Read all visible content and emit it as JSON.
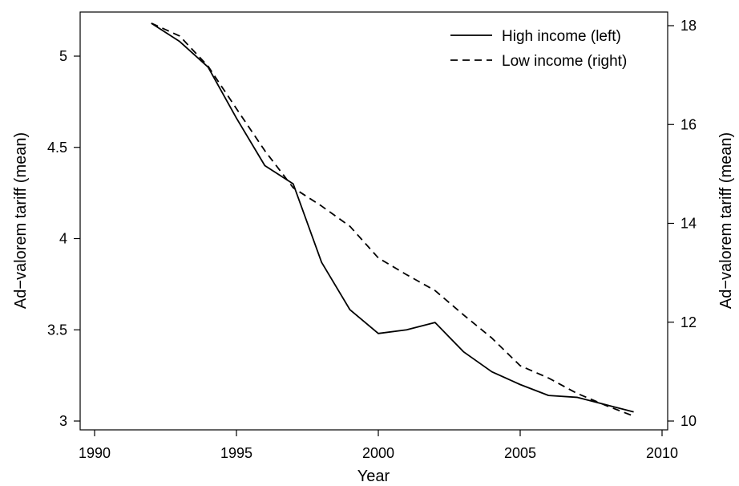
{
  "chart_data": {
    "type": "line",
    "x": [
      1992,
      1993,
      1994,
      1995,
      1996,
      1997,
      1998,
      1999,
      2000,
      2001,
      2002,
      2003,
      2004,
      2005,
      2006,
      2007,
      2008,
      2009
    ],
    "xlabel": "Year",
    "xlim": [
      1990,
      2010
    ],
    "xticks": [
      1990,
      1995,
      2000,
      2005,
      2010
    ],
    "y_left": {
      "label": "Ad−valorem tariff (mean)",
      "lim": [
        3,
        5.2
      ],
      "ticks": [
        "3",
        "3.5",
        "4",
        "4.5",
        "5"
      ],
      "tick_values": [
        3,
        3.5,
        4,
        4.5,
        5
      ]
    },
    "y_right": {
      "label": "Ad−valorem tariff (mean)",
      "lim": [
        10,
        18
      ],
      "ticks": [
        "10",
        "12",
        "14",
        "16",
        "18"
      ],
      "tick_values": [
        10,
        12,
        14,
        16,
        18
      ]
    },
    "series": [
      {
        "name": "High income (left)",
        "axis": "left",
        "style": "solid",
        "values": [
          5.18,
          5.08,
          4.94,
          4.66,
          4.4,
          4.3,
          3.87,
          3.61,
          3.48,
          3.5,
          3.54,
          3.38,
          3.27,
          3.2,
          3.14,
          3.13,
          3.09,
          3.05
        ]
      },
      {
        "name": "Low income (right)",
        "axis": "right",
        "style": "dashed",
        "values": [
          18.05,
          17.79,
          17.18,
          16.32,
          15.47,
          14.72,
          14.35,
          13.94,
          13.3,
          12.96,
          12.64,
          12.15,
          11.68,
          11.12,
          10.87,
          10.56,
          10.32,
          10.1
        ]
      }
    ],
    "legend_position": "top-right",
    "grid": false,
    "colors": {
      "line": "#000000",
      "background": "#ffffff"
    }
  }
}
